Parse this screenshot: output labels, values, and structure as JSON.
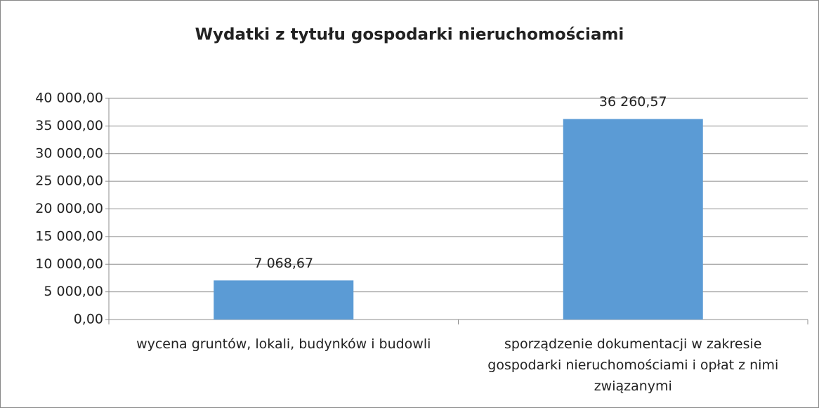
{
  "chart_data": {
    "type": "bar",
    "title": "Wydatki z tytułu gospodarki nieruchomościami",
    "categories": [
      "wycena gruntów, lokali, budynków i budowli",
      "sporządzenie dokumentacji w zakresie gospodarki nieruchomościami i opłat z nimi związanymi"
    ],
    "values": [
      7068.67,
      36260.57
    ],
    "value_labels": [
      "7 068,67",
      "36 260,57"
    ],
    "color": "#5b9bd5",
    "ylim": [
      0,
      40000
    ],
    "yticks": [
      {
        "value": 0,
        "label": "0,00"
      },
      {
        "value": 5000,
        "label": "5 000,00"
      },
      {
        "value": 10000,
        "label": "10 000,00"
      },
      {
        "value": 15000,
        "label": "15 000,00"
      },
      {
        "value": 20000,
        "label": "20 000,00"
      },
      {
        "value": 25000,
        "label": "25 000,00"
      },
      {
        "value": 30000,
        "label": "30 000,00"
      },
      {
        "value": 35000,
        "label": "35 000,00"
      },
      {
        "value": 40000,
        "label": "40 000,00"
      }
    ],
    "grid": true
  }
}
